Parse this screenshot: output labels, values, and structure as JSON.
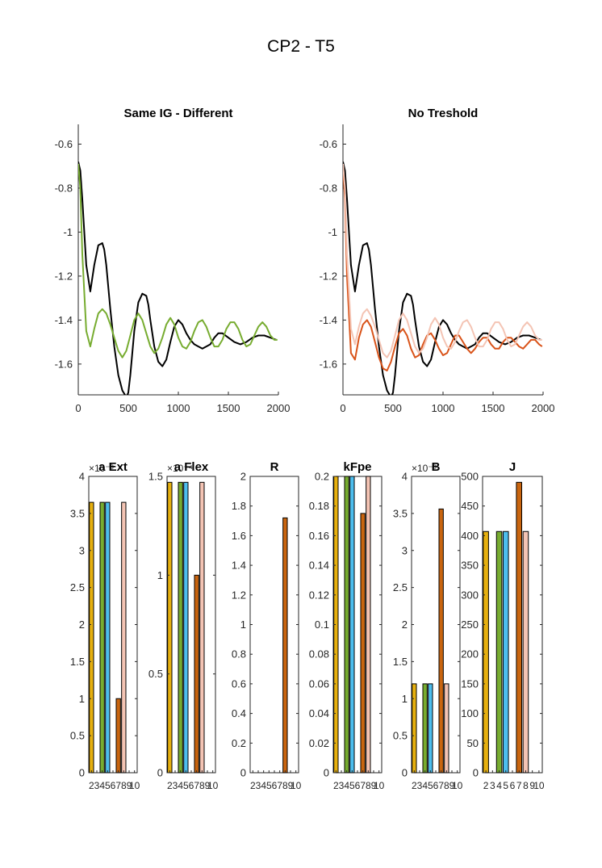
{
  "figure_title": "CP2 - T5",
  "colors": {
    "black": "#000000",
    "green": "#77ac30",
    "orange": "#d95319",
    "peach": "#f4c4b4",
    "yellow": "#edb120",
    "blue": "#4dbeee",
    "gold": "#e6b00f",
    "dark_orange": "#c9650f"
  },
  "chart_data": [
    {
      "type": "line",
      "title": "Same IG - Different",
      "xlim": [
        0,
        2000
      ],
      "ylim": [
        -1.74,
        -0.51
      ],
      "xticks": [
        "0",
        "500",
        "1000",
        "1500",
        "2000"
      ],
      "yticks": [
        "-0.6",
        "-0.8",
        "-1",
        "-1.2",
        "-1.4",
        "-1.6"
      ],
      "series": [
        {
          "color": "black",
          "x": [
            0,
            20,
            40,
            80,
            120,
            160,
            200,
            240,
            260,
            280,
            320,
            360,
            400,
            440,
            480,
            500,
            520,
            560,
            600,
            640,
            680,
            700,
            720,
            760,
            800,
            840,
            880,
            920,
            960,
            1000,
            1040,
            1080,
            1120,
            1160,
            1200,
            1240,
            1280,
            1320,
            1360,
            1400,
            1440,
            1500,
            1560,
            1620,
            1680,
            1740,
            1800,
            1860,
            1920,
            1980
          ],
          "y": [
            -0.68,
            -0.72,
            -0.85,
            -1.15,
            -1.27,
            -1.15,
            -1.06,
            -1.05,
            -1.08,
            -1.15,
            -1.35,
            -1.52,
            -1.65,
            -1.72,
            -1.75,
            -1.73,
            -1.65,
            -1.45,
            -1.32,
            -1.28,
            -1.29,
            -1.33,
            -1.4,
            -1.52,
            -1.59,
            -1.61,
            -1.58,
            -1.5,
            -1.43,
            -1.4,
            -1.42,
            -1.46,
            -1.49,
            -1.51,
            -1.52,
            -1.53,
            -1.52,
            -1.51,
            -1.48,
            -1.46,
            -1.46,
            -1.48,
            -1.5,
            -1.51,
            -1.5,
            -1.48,
            -1.47,
            -1.47,
            -1.48,
            -1.49
          ]
        },
        {
          "color": "green",
          "x": [
            0,
            20,
            40,
            80,
            120,
            160,
            200,
            240,
            280,
            320,
            360,
            400,
            440,
            480,
            520,
            560,
            600,
            640,
            680,
            720,
            760,
            800,
            840,
            880,
            920,
            960,
            1000,
            1040,
            1080,
            1120,
            1160,
            1200,
            1240,
            1280,
            1320,
            1360,
            1400,
            1440,
            1480,
            1520,
            1560,
            1600,
            1640,
            1680,
            1720,
            1760,
            1800,
            1840,
            1880,
            1920,
            1960,
            1990
          ],
          "y": [
            -0.69,
            -0.8,
            -1.1,
            -1.45,
            -1.52,
            -1.44,
            -1.37,
            -1.35,
            -1.37,
            -1.42,
            -1.48,
            -1.54,
            -1.57,
            -1.54,
            -1.47,
            -1.4,
            -1.37,
            -1.4,
            -1.46,
            -1.52,
            -1.55,
            -1.53,
            -1.48,
            -1.42,
            -1.39,
            -1.42,
            -1.48,
            -1.52,
            -1.53,
            -1.5,
            -1.45,
            -1.41,
            -1.4,
            -1.43,
            -1.48,
            -1.52,
            -1.52,
            -1.49,
            -1.44,
            -1.41,
            -1.41,
            -1.44,
            -1.49,
            -1.52,
            -1.51,
            -1.47,
            -1.43,
            -1.41,
            -1.43,
            -1.47,
            -1.49,
            -1.49
          ]
        }
      ]
    },
    {
      "type": "line",
      "title": "No Treshold",
      "xlim": [
        0,
        2000
      ],
      "ylim": [
        -1.74,
        -0.51
      ],
      "xticks": [
        "0",
        "500",
        "1000",
        "1500",
        "2000"
      ],
      "yticks": [
        "-0.6",
        "-0.8",
        "-1",
        "-1.2",
        "-1.4",
        "-1.6"
      ],
      "series": [
        {
          "color": "black",
          "x": [
            0,
            20,
            40,
            80,
            120,
            160,
            200,
            240,
            260,
            280,
            320,
            360,
            400,
            440,
            480,
            500,
            520,
            560,
            600,
            640,
            680,
            700,
            720,
            760,
            800,
            840,
            880,
            920,
            960,
            1000,
            1040,
            1080,
            1120,
            1160,
            1200,
            1240,
            1280,
            1320,
            1360,
            1400,
            1440,
            1500,
            1560,
            1620,
            1680,
            1740,
            1800,
            1860,
            1920,
            1980
          ],
          "y": [
            -0.68,
            -0.72,
            -0.85,
            -1.15,
            -1.27,
            -1.15,
            -1.06,
            -1.05,
            -1.08,
            -1.15,
            -1.35,
            -1.52,
            -1.65,
            -1.72,
            -1.75,
            -1.73,
            -1.65,
            -1.45,
            -1.32,
            -1.28,
            -1.29,
            -1.33,
            -1.4,
            -1.52,
            -1.59,
            -1.61,
            -1.58,
            -1.5,
            -1.43,
            -1.4,
            -1.42,
            -1.46,
            -1.49,
            -1.51,
            -1.52,
            -1.53,
            -1.52,
            -1.51,
            -1.48,
            -1.46,
            -1.46,
            -1.48,
            -1.5,
            -1.51,
            -1.5,
            -1.48,
            -1.47,
            -1.47,
            -1.48,
            -1.49
          ]
        },
        {
          "color": "orange",
          "x": [
            0,
            20,
            40,
            80,
            120,
            160,
            200,
            240,
            280,
            320,
            360,
            400,
            440,
            480,
            520,
            560,
            600,
            640,
            680,
            720,
            760,
            800,
            840,
            880,
            920,
            960,
            1000,
            1040,
            1080,
            1120,
            1160,
            1200,
            1240,
            1280,
            1320,
            1360,
            1400,
            1440,
            1480,
            1520,
            1560,
            1600,
            1640,
            1680,
            1720,
            1760,
            1800,
            1840,
            1880,
            1920,
            1960,
            1990
          ],
          "y": [
            -0.7,
            -0.85,
            -1.2,
            -1.55,
            -1.58,
            -1.48,
            -1.42,
            -1.4,
            -1.43,
            -1.5,
            -1.57,
            -1.62,
            -1.63,
            -1.59,
            -1.52,
            -1.46,
            -1.44,
            -1.47,
            -1.53,
            -1.57,
            -1.56,
            -1.51,
            -1.47,
            -1.46,
            -1.49,
            -1.53,
            -1.56,
            -1.55,
            -1.51,
            -1.47,
            -1.47,
            -1.5,
            -1.53,
            -1.55,
            -1.53,
            -1.5,
            -1.48,
            -1.48,
            -1.51,
            -1.53,
            -1.53,
            -1.5,
            -1.48,
            -1.48,
            -1.5,
            -1.52,
            -1.53,
            -1.51,
            -1.49,
            -1.49,
            -1.51,
            -1.52
          ]
        },
        {
          "color": "peach",
          "x": [
            0,
            20,
            40,
            80,
            120,
            160,
            200,
            240,
            280,
            320,
            360,
            400,
            440,
            480,
            520,
            560,
            600,
            640,
            680,
            720,
            760,
            800,
            840,
            880,
            920,
            960,
            1000,
            1040,
            1080,
            1120,
            1160,
            1200,
            1240,
            1280,
            1320,
            1360,
            1400,
            1440,
            1480,
            1520,
            1560,
            1600,
            1640,
            1680,
            1720,
            1760,
            1800,
            1840,
            1880,
            1920,
            1960,
            1990
          ],
          "y": [
            -0.69,
            -0.8,
            -1.1,
            -1.44,
            -1.51,
            -1.43,
            -1.37,
            -1.35,
            -1.38,
            -1.43,
            -1.49,
            -1.55,
            -1.57,
            -1.54,
            -1.47,
            -1.4,
            -1.37,
            -1.4,
            -1.46,
            -1.52,
            -1.55,
            -1.53,
            -1.48,
            -1.42,
            -1.39,
            -1.42,
            -1.48,
            -1.52,
            -1.53,
            -1.5,
            -1.45,
            -1.41,
            -1.4,
            -1.43,
            -1.48,
            -1.52,
            -1.52,
            -1.49,
            -1.44,
            -1.41,
            -1.41,
            -1.44,
            -1.49,
            -1.52,
            -1.51,
            -1.47,
            -1.43,
            -1.41,
            -1.43,
            -1.47,
            -1.49,
            -1.49
          ]
        }
      ]
    },
    {
      "type": "bar",
      "title": "a Ext",
      "exponent_label": "10⁻³",
      "ylim": [
        0,
        4
      ],
      "yticks": [
        "0",
        "0.5",
        "1",
        "1.5",
        "2",
        "2.5",
        "3",
        "3.5",
        "4"
      ],
      "xticks": [
        "2",
        "3",
        "4",
        "5",
        "6",
        "7",
        "8",
        "9",
        "10"
      ],
      "categories": [
        2,
        3,
        4,
        5,
        6,
        7,
        8,
        9,
        10
      ],
      "values": [
        3.65,
        0,
        3.65,
        3.65,
        0,
        1.0,
        3.65,
        0,
        0
      ],
      "bar_colors": [
        "gold",
        "",
        "green",
        "blue",
        "",
        "dark_orange",
        "peach",
        "",
        ""
      ]
    },
    {
      "type": "bar",
      "title": "a Flex",
      "exponent_label": "10⁻⁴",
      "ylim": [
        0,
        1.5
      ],
      "yticks": [
        "0",
        "0.5",
        "1",
        "1.5"
      ],
      "xticks": [
        "2",
        "3",
        "4",
        "5",
        "6",
        "7",
        "8",
        "9",
        "10"
      ],
      "categories": [
        2,
        3,
        4,
        5,
        6,
        7,
        8,
        9,
        10
      ],
      "values": [
        1.47,
        0,
        1.47,
        1.47,
        0,
        1.0,
        1.47,
        0,
        0
      ],
      "bar_colors": [
        "gold",
        "",
        "green",
        "blue",
        "",
        "dark_orange",
        "peach",
        "",
        ""
      ]
    },
    {
      "type": "bar",
      "title": "R",
      "ylim": [
        0,
        2
      ],
      "yticks": [
        "0",
        "0.2",
        "0.4",
        "0.6",
        "0.8",
        "1",
        "1.2",
        "1.4",
        "1.6",
        "1.8",
        "2"
      ],
      "xticks": [
        "2",
        "3",
        "4",
        "5",
        "6",
        "7",
        "8",
        "9",
        "10"
      ],
      "categories": [
        2,
        3,
        4,
        5,
        6,
        7,
        8,
        9,
        10
      ],
      "values": [
        0,
        0,
        0,
        0,
        0,
        0,
        1.72,
        0,
        0
      ],
      "bar_colors": [
        "",
        "",
        "",
        "",
        "",
        "",
        "dark_orange",
        "",
        ""
      ]
    },
    {
      "type": "bar",
      "title": "kFpe",
      "ylim": [
        0,
        0.2
      ],
      "yticks": [
        "0",
        "0.02",
        "0.04",
        "0.06",
        "0.08",
        "0.1",
        "0.12",
        "0.14",
        "0.16",
        "0.18",
        "0.2"
      ],
      "xticks": [
        "2",
        "3",
        "4",
        "5",
        "6",
        "7",
        "8",
        "9",
        "10"
      ],
      "categories": [
        2,
        3,
        4,
        5,
        6,
        7,
        8,
        9,
        10
      ],
      "values": [
        0.2,
        0,
        0.2,
        0.2,
        0,
        0.175,
        0.2,
        0,
        0
      ],
      "bar_colors": [
        "gold",
        "",
        "green",
        "blue",
        "",
        "dark_orange",
        "peach",
        "",
        ""
      ]
    },
    {
      "type": "bar",
      "title": "B",
      "exponent_label": "10⁻³",
      "ylim": [
        0,
        4
      ],
      "yticks": [
        "0",
        "0.5",
        "1",
        "1.5",
        "2",
        "2.5",
        "3",
        "3.5",
        "4"
      ],
      "xticks": [
        "2",
        "3",
        "4",
        "5",
        "6",
        "7",
        "8",
        "9",
        "10"
      ],
      "categories": [
        2,
        3,
        4,
        5,
        6,
        7,
        8,
        9,
        10
      ],
      "values": [
        1.2,
        0,
        1.2,
        1.2,
        0,
        3.56,
        1.2,
        0,
        0
      ],
      "bar_colors": [
        "gold",
        "",
        "green",
        "blue",
        "",
        "dark_orange",
        "peach",
        "",
        ""
      ]
    },
    {
      "type": "bar",
      "title": "J",
      "ylim": [
        0,
        500
      ],
      "yticks": [
        "0",
        "50",
        "100",
        "150",
        "200",
        "250",
        "300",
        "350",
        "400",
        "450",
        "500"
      ],
      "xticks": [
        "2",
        "3",
        "4",
        "5",
        "6",
        "7",
        "8",
        "9",
        "10"
      ],
      "categories": [
        2,
        3,
        4,
        5,
        6,
        7,
        8,
        9,
        10
      ],
      "values": [
        407,
        0,
        407,
        407,
        0,
        490,
        407,
        0,
        0
      ],
      "bar_colors": [
        "gold",
        "",
        "green",
        "blue",
        "",
        "dark_orange",
        "peach",
        "",
        ""
      ]
    }
  ]
}
